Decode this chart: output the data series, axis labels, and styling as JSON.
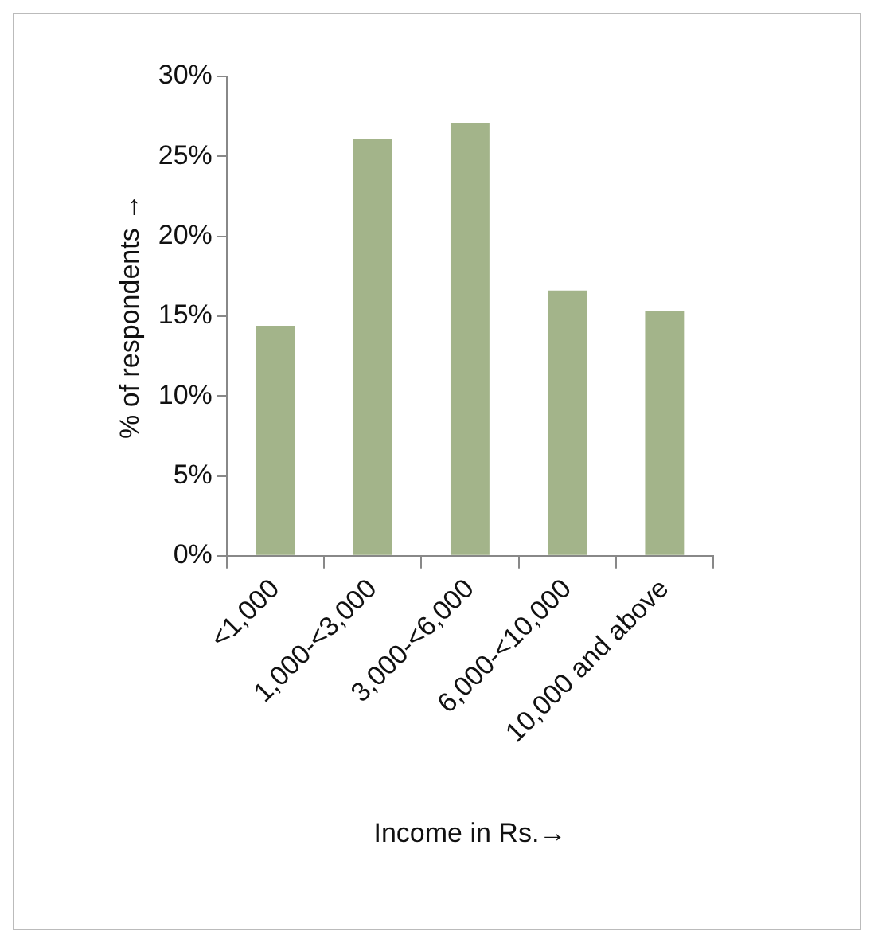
{
  "chart_data": {
    "type": "bar",
    "xlabel": "Income in Rs.→",
    "ylabel": "% of respondents →",
    "categories": [
      "<1,000",
      "1,000-<3,000",
      "3,000-<6,000",
      "6,000-<10,000",
      "10,000 and above"
    ],
    "values": [
      14.4,
      26.1,
      27.1,
      16.6,
      15.3
    ],
    "color": "#a3b48a",
    "ylim": [
      0,
      30
    ],
    "yticks": [
      {
        "value": 0,
        "label": "0%"
      },
      {
        "value": 5,
        "label": "5%"
      },
      {
        "value": 10,
        "label": "10%"
      },
      {
        "value": 15,
        "label": "15%"
      },
      {
        "value": 20,
        "label": "20%"
      },
      {
        "value": 25,
        "label": "25%"
      },
      {
        "value": 30,
        "label": "30%"
      }
    ],
    "grid": false,
    "legend": false
  }
}
